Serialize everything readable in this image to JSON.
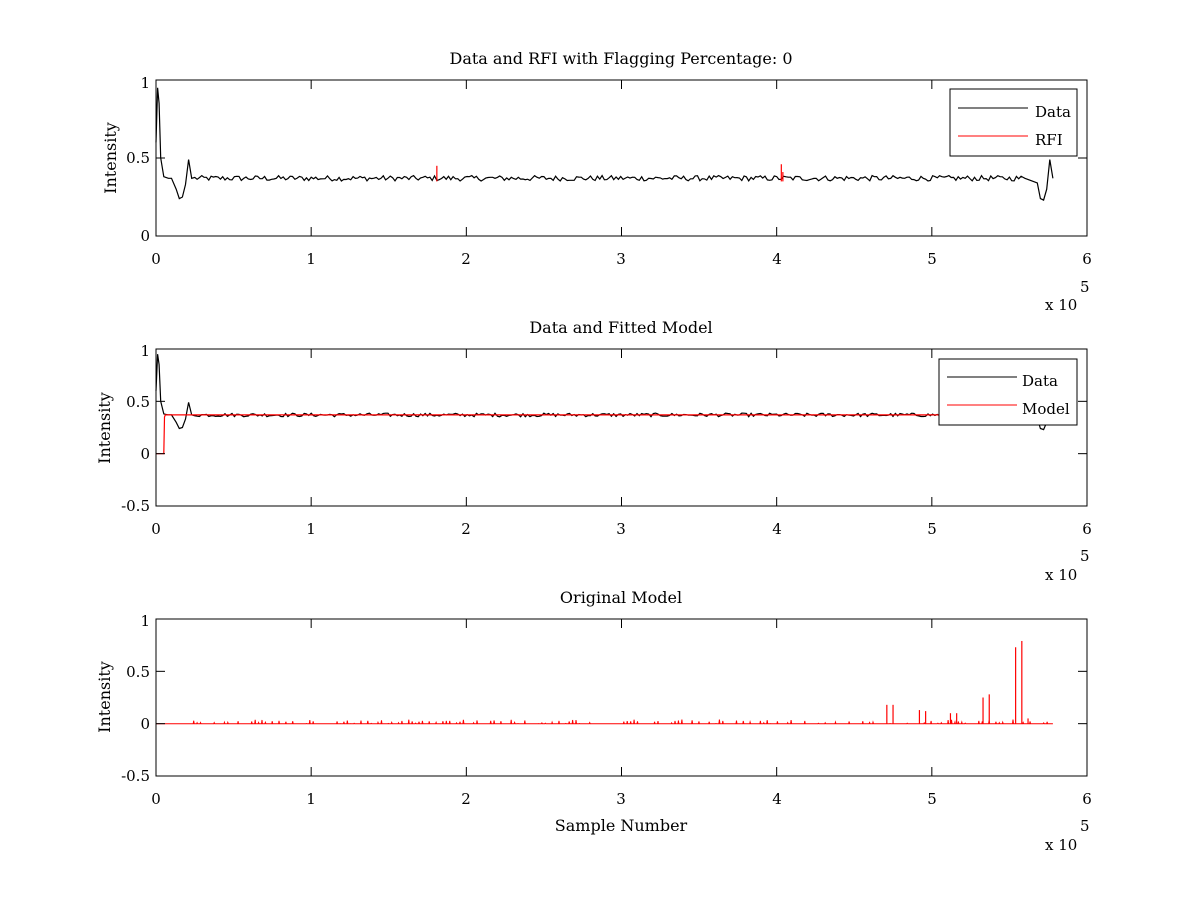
{
  "chart_data": [
    {
      "type": "line",
      "title": "Data and RFI with Flagging Percentage: 0",
      "xlabel": "",
      "ylabel": "Intensity",
      "xlim": [
        0,
        600000
      ],
      "ylim": [
        0,
        1
      ],
      "xticks": [
        "0",
        "1",
        "2",
        "3",
        "4",
        "5",
        "6"
      ],
      "yticks": [
        "0",
        "0.5",
        "1"
      ],
      "x_exponent_prefix": "x 10",
      "x_exponent_power": "5",
      "legend_position": "top-right",
      "series": [
        {
          "name": "Data",
          "color": "#000000",
          "baseline": 0.37,
          "x": [
            0,
            1000,
            2000,
            3000,
            5000,
            8000,
            10000,
            13000,
            15000,
            17000,
            19000,
            21000,
            23000,
            560000,
            568000,
            570000,
            572000,
            574000,
            576000,
            578000
          ],
          "y": [
            0.6,
            0.95,
            0.85,
            0.5,
            0.38,
            0.37,
            0.37,
            0.3,
            0.24,
            0.25,
            0.33,
            0.49,
            0.37,
            0.37,
            0.34,
            0.24,
            0.23,
            0.3,
            0.49,
            0.37
          ]
        },
        {
          "name": "RFI",
          "color": "#ff0000",
          "spikes": [
            {
              "x": 181000,
              "y": 0.45
            },
            {
              "x": 403000,
              "y": 0.46
            },
            {
              "x": 404000,
              "y": 0.41
            }
          ]
        }
      ]
    },
    {
      "type": "line",
      "title": "Data and Fitted Model",
      "xlabel": "",
      "ylabel": "Intensity",
      "xlim": [
        0,
        600000
      ],
      "ylim": [
        -0.5,
        1
      ],
      "xticks": [
        "0",
        "1",
        "2",
        "3",
        "4",
        "5",
        "6"
      ],
      "yticks": [
        "-0.5",
        "0",
        "0.5",
        "1"
      ],
      "x_exponent_prefix": "x 10",
      "x_exponent_power": "5",
      "legend_position": "top-right",
      "series": [
        {
          "name": "Data",
          "color": "#000000",
          "baseline": 0.37,
          "x": [
            0,
            1000,
            2000,
            3000,
            5000,
            8000,
            10000,
            13000,
            15000,
            17000,
            19000,
            21000,
            23000,
            560000,
            568000,
            570000,
            572000,
            574000,
            576000,
            578000
          ],
          "y": [
            0.6,
            0.95,
            0.85,
            0.5,
            0.38,
            0.37,
            0.37,
            0.3,
            0.24,
            0.25,
            0.33,
            0.49,
            0.37,
            0.37,
            0.34,
            0.24,
            0.23,
            0.3,
            0.49,
            0.37
          ]
        },
        {
          "name": "Model",
          "color": "#ff0000",
          "x": [
            0,
            5000,
            5500,
            6000,
            578000
          ],
          "y": [
            0,
            0,
            0.35,
            0.37,
            0.37
          ]
        }
      ]
    },
    {
      "type": "line",
      "title": "Original Model",
      "xlabel": "Sample Number",
      "ylabel": "Intensity",
      "xlim": [
        0,
        600000
      ],
      "ylim": [
        -0.5,
        1
      ],
      "xticks": [
        "0",
        "1",
        "2",
        "3",
        "4",
        "5",
        "6"
      ],
      "yticks": [
        "-0.5",
        "0",
        "0.5",
        "1"
      ],
      "x_exponent_prefix": "x 10",
      "x_exponent_power": "5",
      "series": [
        {
          "name": "",
          "color": "#ff0000",
          "x_range": [
            0,
            578000
          ],
          "baseline": 0,
          "spikes": [
            {
              "x": 471000,
              "y": 0.18
            },
            {
              "x": 475000,
              "y": 0.18
            },
            {
              "x": 492000,
              "y": 0.13
            },
            {
              "x": 496000,
              "y": 0.12
            },
            {
              "x": 512000,
              "y": 0.1
            },
            {
              "x": 516000,
              "y": 0.1
            },
            {
              "x": 533000,
              "y": 0.25
            },
            {
              "x": 537000,
              "y": 0.28
            },
            {
              "x": 554000,
              "y": 0.73
            },
            {
              "x": 558000,
              "y": 0.79
            },
            {
              "x": 562000,
              "y": 0.05
            }
          ]
        }
      ]
    }
  ]
}
